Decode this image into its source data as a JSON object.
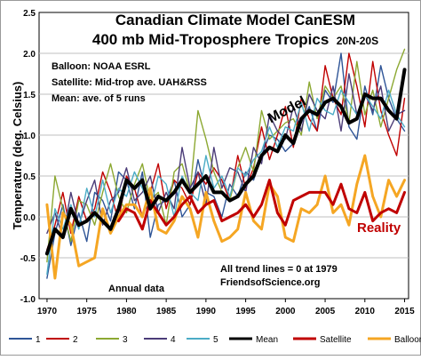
{
  "chart_data": {
    "type": "line",
    "title": "Canadian Climate Model CanESM",
    "subtitle_main": "400 mb Mid-Troposphere Tropics",
    "subtitle_suffix": "20N-20S",
    "ylabel": "Temperature (deg. Celsius)",
    "xlabel": "",
    "xlim": [
      1969,
      2015.5
    ],
    "ylim": [
      -1.0,
      2.5
    ],
    "x_ticks": [
      1970,
      1975,
      1980,
      1985,
      1990,
      1995,
      2000,
      2005,
      2010,
      2015
    ],
    "y_ticks": [
      -1.0,
      -0.5,
      0.0,
      0.5,
      1.0,
      1.5,
      2.0,
      2.5
    ],
    "grid": true,
    "legend_position": "bottom",
    "notes": [
      "Balloon: NOAA ESRL",
      "Satellite: Mid-trop ave. UAH&RSS",
      "Mean: ave. of 5 runs"
    ],
    "annotations": {
      "model": "Model",
      "reality": "Reality",
      "trend": "All trend lines = 0 at 1979",
      "source": "FriendsofScience.org",
      "annual": "Annual data"
    },
    "series": [
      {
        "name": "1",
        "color": "#2f5597",
        "start_year": 1970,
        "values": [
          -0.75,
          -0.2,
          0.15,
          -0.35,
          0.05,
          -0.3,
          0.3,
          0.2,
          -0.05,
          0.55,
          0.45,
          0.1,
          0.55,
          -0.25,
          0.15,
          0.2,
          0.45,
          0.0,
          0.15,
          0.7,
          0.3,
          0.25,
          0.0,
          0.4,
          0.25,
          0.55,
          0.45,
          0.75,
          1.0,
          0.95,
          0.8,
          0.9,
          1.15,
          1.35,
          1.05,
          1.55,
          1.4,
          2.0,
          1.1,
          0.95,
          1.6,
          1.25,
          1.85,
          1.45,
          1.2,
          1.05
        ]
      },
      {
        "name": "2",
        "color": "#c00000",
        "start_year": 1970,
        "values": [
          -0.4,
          -0.1,
          0.3,
          -0.2,
          0.25,
          -0.05,
          0.1,
          0.55,
          0.3,
          -0.05,
          0.5,
          0.35,
          0.0,
          0.3,
          0.65,
          0.1,
          0.45,
          0.35,
          0.15,
          0.55,
          0.4,
          0.6,
          0.45,
          0.2,
          0.75,
          0.35,
          0.6,
          1.1,
          0.7,
          1.0,
          1.35,
          0.85,
          1.45,
          1.2,
          1.05,
          1.85,
          1.45,
          1.25,
          2.0,
          1.6,
          1.1,
          1.9,
          1.3,
          1.0,
          0.75,
          1.45
        ]
      },
      {
        "name": "3",
        "color": "#8ca832",
        "start_year": 1970,
        "values": [
          -0.55,
          0.5,
          0.1,
          -0.3,
          0.2,
          0.15,
          -0.1,
          0.3,
          0.65,
          0.25,
          0.05,
          0.4,
          0.65,
          0.2,
          0.3,
          -0.1,
          0.55,
          0.65,
          0.3,
          1.3,
          0.95,
          0.55,
          0.3,
          0.2,
          0.6,
          0.85,
          0.55,
          1.3,
          0.95,
          1.05,
          1.15,
          1.2,
          1.0,
          1.65,
          1.2,
          1.6,
          1.45,
          1.6,
          1.15,
          1.9,
          1.25,
          1.55,
          1.1,
          1.45,
          1.8,
          2.05
        ]
      },
      {
        "name": "4",
        "color": "#4b3c78",
        "start_year": 1970,
        "values": [
          -0.2,
          0.05,
          -0.25,
          0.3,
          -0.1,
          0.2,
          0.45,
          -0.1,
          0.2,
          0.3,
          0.6,
          0.2,
          0.3,
          0.5,
          0.05,
          0.3,
          0.1,
          0.85,
          0.35,
          0.55,
          0.15,
          0.85,
          0.35,
          0.6,
          0.55,
          0.3,
          0.85,
          0.65,
          1.25,
          1.05,
          0.95,
          1.35,
          1.05,
          1.5,
          1.3,
          1.2,
          1.6,
          1.05,
          1.75,
          1.25,
          1.5,
          1.3,
          1.6,
          1.05,
          1.25,
          1.3
        ]
      },
      {
        "name": "5",
        "color": "#4bacc6",
        "start_year": 1970,
        "values": [
          -0.7,
          0.1,
          -0.15,
          0.15,
          -0.15,
          0.35,
          0.0,
          0.45,
          0.05,
          0.35,
          0.25,
          0.55,
          0.35,
          0.1,
          0.5,
          0.4,
          0.0,
          0.5,
          0.3,
          0.2,
          0.75,
          0.35,
          0.5,
          0.25,
          0.6,
          0.5,
          0.7,
          0.8,
          1.1,
          0.85,
          1.1,
          1.05,
          1.4,
          1.05,
          1.45,
          1.3,
          1.25,
          1.55,
          1.4,
          1.25,
          1.5,
          1.35,
          1.2,
          1.55,
          1.25,
          1.1
        ]
      },
      {
        "name": "Mean",
        "color": "#000000",
        "start_year": 1970,
        "values": [
          -0.45,
          -0.15,
          -0.25,
          0.1,
          -0.1,
          -0.05,
          0.05,
          -0.05,
          -0.15,
          0.1,
          0.45,
          0.35,
          0.45,
          0.1,
          0.25,
          0.2,
          0.3,
          0.45,
          0.3,
          0.4,
          0.5,
          0.3,
          0.3,
          0.2,
          0.25,
          0.4,
          0.5,
          0.75,
          0.85,
          0.8,
          1.0,
          0.9,
          1.2,
          1.3,
          1.25,
          1.4,
          1.45,
          1.35,
          1.15,
          1.2,
          1.5,
          1.45,
          1.45,
          1.3,
          1.2,
          1.8
        ]
      },
      {
        "name": "Satellite",
        "color": "#c00000",
        "start_year": 1979,
        "values": [
          -0.05,
          0.1,
          0.05,
          -0.15,
          0.2,
          0.05,
          -0.1,
          0.0,
          0.15,
          0.25,
          0.05,
          0.15,
          0.2,
          -0.05,
          0.0,
          0.05,
          0.15,
          0.0,
          0.15,
          0.45,
          0.05,
          -0.1,
          0.2,
          0.25,
          0.3,
          0.3,
          0.3,
          0.15,
          0.4,
          0.1,
          0.05,
          0.3,
          -0.05,
          0.05,
          0.1,
          0.05,
          0.3
        ]
      },
      {
        "name": "Balloon",
        "color": "#f5a623",
        "start_year": 1970,
        "values": [
          0.15,
          -0.75,
          0.05,
          -0.1,
          -0.6,
          -0.55,
          -0.5,
          0.1,
          -0.2,
          0.0,
          0.15,
          0.15,
          0.0,
          0.35,
          -0.15,
          -0.2,
          -0.05,
          0.25,
          0.1,
          -0.25,
          0.3,
          -0.05,
          -0.3,
          -0.25,
          -0.15,
          0.3,
          -0.05,
          -0.15,
          0.4,
          0.25,
          -0.25,
          -0.3,
          0.1,
          0.05,
          0.15,
          0.5,
          0.05,
          0.15,
          -0.1,
          0.4,
          0.75,
          0.25,
          0.0,
          0.45,
          0.25,
          0.45
        ]
      }
    ]
  }
}
